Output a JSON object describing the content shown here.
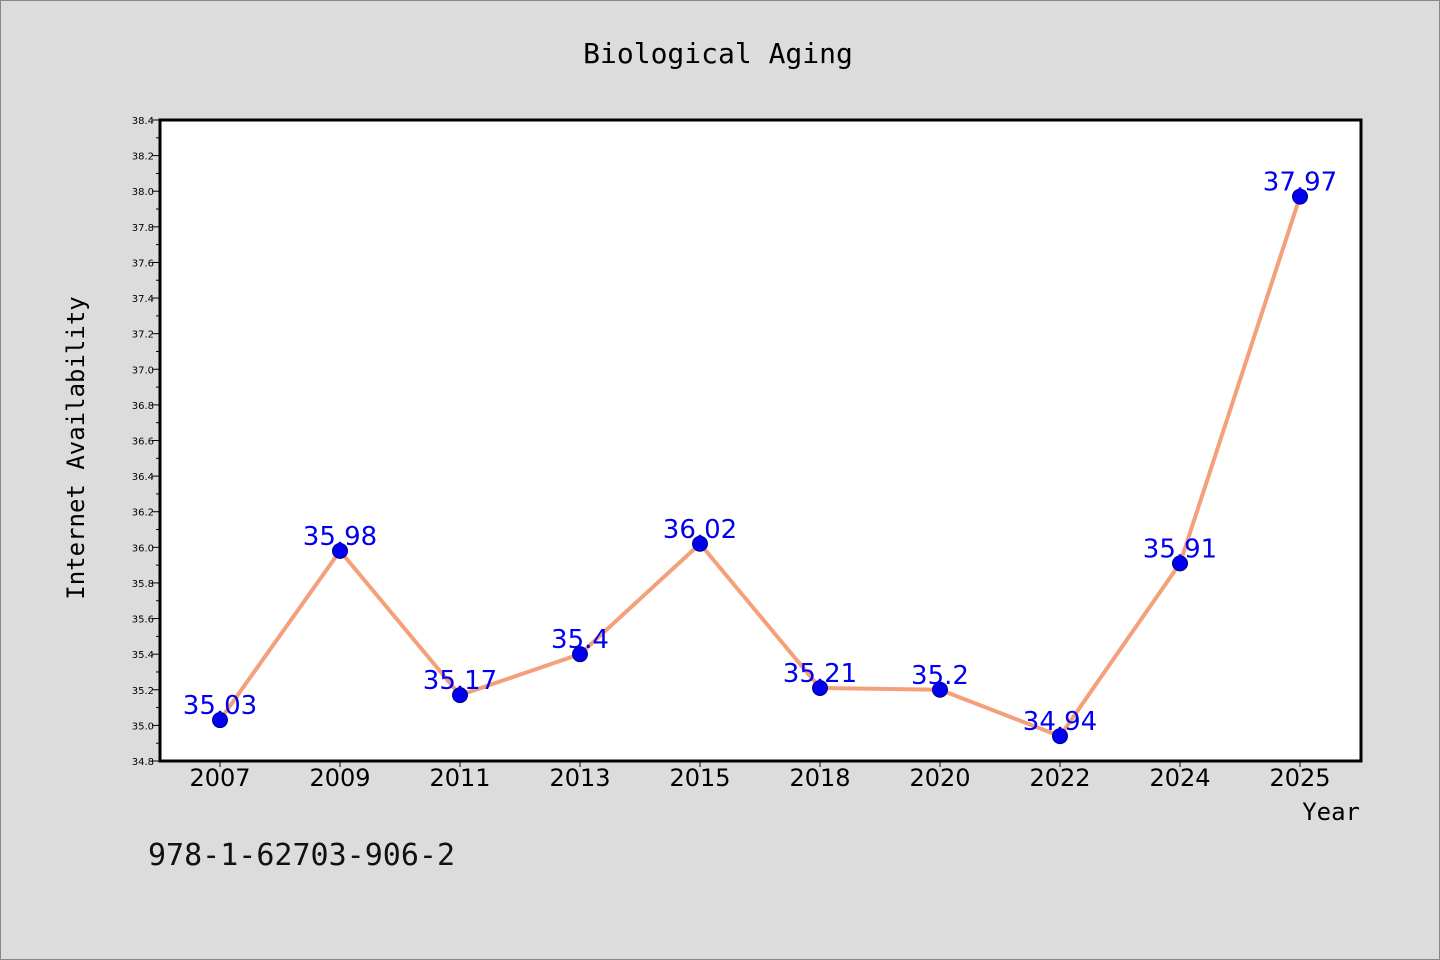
{
  "chart_data": {
    "type": "line",
    "title": "Biological Aging",
    "xlabel": "Year",
    "ylabel": "Internet Availability",
    "categories": [
      "2007",
      "2009",
      "2011",
      "2013",
      "2015",
      "2018",
      "2020",
      "2022",
      "2024",
      "2025"
    ],
    "series": [
      {
        "values": [
          35.03,
          35.98,
          35.17,
          35.4,
          36.02,
          35.21,
          35.2,
          34.94,
          35.91,
          37.97
        ],
        "labels": [
          "35.03",
          "35.98",
          "35.17",
          "35.4",
          "36.02",
          "35.21",
          "35.2",
          "34.94",
          "35.91",
          "37.97"
        ]
      }
    ],
    "ylim": [
      34.8,
      38.4
    ],
    "yticks": [
      "34.8",
      "35.0",
      "35.2",
      "35.4",
      "35.6",
      "35.8",
      "36.0",
      "36.2",
      "36.4",
      "36.6",
      "36.8",
      "37.0",
      "37.2",
      "37.4",
      "37.6",
      "37.8",
      "38.0",
      "38.2",
      "38.4"
    ],
    "grid": false,
    "legend": "none",
    "colors": {
      "line": "#f4a07a",
      "marker": "#0000ee",
      "label": "#0000ee"
    }
  },
  "footer": {
    "isbn": "978-1-62703-906-2"
  }
}
